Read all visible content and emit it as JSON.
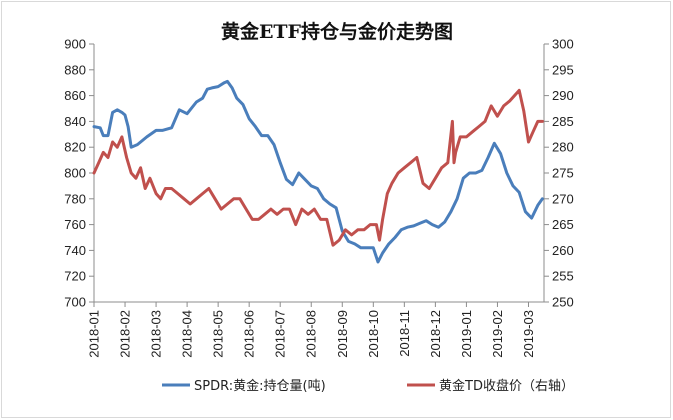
{
  "chart_data": {
    "type": "line",
    "title": "黄金ETF持仓与金价走势图",
    "xlabel": "",
    "ylabel": "",
    "x_tick_labels": [
      "2018-01",
      "2018-02",
      "2018-03",
      "2018-04",
      "2018-05",
      "2018-06",
      "2018-07",
      "2018-08",
      "2018-09",
      "2018-10",
      "2018-11",
      "2018-12",
      "2019-01",
      "2019-02",
      "2019-03"
    ],
    "x_tick_positions": [
      0,
      1,
      2,
      3,
      4,
      5,
      6,
      7,
      8,
      9,
      10,
      11,
      12,
      13,
      14
    ],
    "xlim": [
      0,
      14.5
    ],
    "y_left": {
      "range": [
        700,
        900
      ],
      "ticks": [
        700,
        720,
        740,
        760,
        780,
        800,
        820,
        840,
        860,
        880,
        900
      ]
    },
    "y_right": {
      "label": "",
      "range": [
        250,
        300
      ],
      "ticks": [
        250,
        255,
        260,
        265,
        270,
        275,
        280,
        285,
        290,
        295,
        300
      ]
    },
    "grid": false,
    "legend_position": "bottom",
    "series": [
      {
        "name": "SPDR:黄金:持仓量(吨)",
        "axis": "left",
        "color": "#4a7ebb",
        "x": [
          0,
          0.2,
          0.3,
          0.45,
          0.6,
          0.75,
          0.9,
          1.0,
          1.1,
          1.2,
          1.4,
          1.7,
          2.0,
          2.2,
          2.5,
          2.75,
          3.0,
          3.3,
          3.5,
          3.65,
          3.8,
          4.0,
          4.2,
          4.3,
          4.45,
          4.6,
          4.8,
          5.0,
          5.2,
          5.4,
          5.6,
          5.8,
          6.0,
          6.2,
          6.4,
          6.6,
          6.8,
          7.0,
          7.2,
          7.4,
          7.6,
          7.8,
          8.0,
          8.2,
          8.4,
          8.6,
          8.8,
          9.0,
          9.15,
          9.3,
          9.5,
          9.7,
          9.9,
          10.1,
          10.3,
          10.5,
          10.7,
          10.9,
          11.1,
          11.3,
          11.5,
          11.7,
          11.9,
          12.1,
          12.3,
          12.5,
          12.7,
          12.9,
          13.1,
          13.3,
          13.5,
          13.7,
          13.9,
          14.1,
          14.3,
          14.45
        ],
        "values": [
          836,
          835,
          829,
          829,
          847,
          849,
          847,
          845,
          836,
          820,
          822,
          828,
          833,
          833,
          835,
          849,
          846,
          855,
          858,
          865,
          866,
          867,
          870,
          871,
          866,
          858,
          853,
          842,
          836,
          829,
          829,
          822,
          808,
          795,
          791,
          800,
          795,
          790,
          788,
          780,
          776,
          773,
          755,
          747,
          745,
          742,
          742,
          742,
          731,
          738,
          745,
          750,
          756,
          758,
          759,
          761,
          763,
          760,
          758,
          762,
          770,
          780,
          796,
          800,
          800,
          802,
          812,
          823,
          815,
          800,
          790,
          785,
          770,
          765,
          775,
          780
        ]
      },
      {
        "name": "黄金TD收盘价（右轴）",
        "axis": "right",
        "color": "#c0504d",
        "x": [
          0,
          0.15,
          0.3,
          0.45,
          0.6,
          0.75,
          0.9,
          1.05,
          1.2,
          1.35,
          1.5,
          1.65,
          1.8,
          2.0,
          2.15,
          2.3,
          2.5,
          2.7,
          2.9,
          3.1,
          3.3,
          3.5,
          3.7,
          3.9,
          4.1,
          4.3,
          4.5,
          4.7,
          4.9,
          5.1,
          5.3,
          5.5,
          5.7,
          5.9,
          6.1,
          6.3,
          6.5,
          6.7,
          6.9,
          7.1,
          7.3,
          7.5,
          7.7,
          7.9,
          8.1,
          8.3,
          8.5,
          8.7,
          8.9,
          9.1,
          9.2,
          9.3,
          9.45,
          9.6,
          9.8,
          10.0,
          10.2,
          10.4,
          10.6,
          10.8,
          11.0,
          11.2,
          11.4,
          11.55,
          11.6,
          11.65,
          11.8,
          12.0,
          12.2,
          12.4,
          12.6,
          12.8,
          13.0,
          13.2,
          13.4,
          13.55,
          13.7,
          13.85,
          14.0,
          14.15,
          14.3,
          14.45
        ],
        "values": [
          275,
          277,
          279,
          278,
          281,
          280,
          282,
          278,
          275,
          274,
          276,
          272,
          274,
          271,
          270,
          272,
          272,
          271,
          270,
          269,
          270,
          271,
          272,
          270,
          268,
          269,
          270,
          270,
          268,
          266,
          266,
          267,
          268,
          267,
          268,
          268,
          265,
          268,
          267,
          268,
          266,
          266,
          261,
          262,
          264,
          263,
          264,
          264,
          265,
          265,
          262,
          266,
          271,
          273,
          275,
          276,
          277,
          278,
          273,
          272,
          274,
          276,
          277,
          285,
          277,
          279,
          282,
          282,
          283,
          284,
          285,
          288,
          286,
          288,
          289,
          290,
          291,
          287,
          281,
          283,
          285,
          285
        ]
      }
    ]
  }
}
